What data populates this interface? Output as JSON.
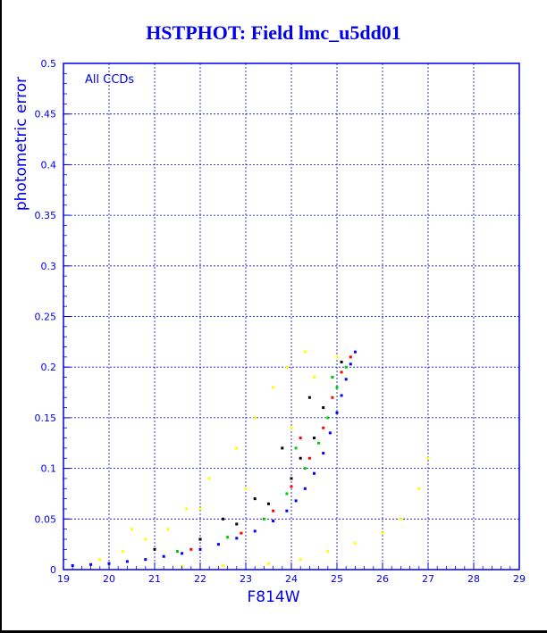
{
  "chart_data": {
    "type": "scatter",
    "title": "HSTPHOT: Field lmc_u5dd01",
    "xlabel": "F814W",
    "ylabel": "photometric error",
    "annotation": "All CCDs",
    "xlim": [
      19,
      29
    ],
    "ylim": [
      0,
      0.5
    ],
    "x_ticks": [
      "19",
      "20",
      "21",
      "22",
      "23",
      "24",
      "25",
      "26",
      "27",
      "28",
      "29"
    ],
    "y_ticks": [
      "0",
      "0.05",
      "0.1",
      "0.15",
      "0.2",
      "0.25",
      "0.3",
      "0.35",
      "0.4",
      "0.45",
      "0.5"
    ],
    "grid": true,
    "series": [
      {
        "color": "#0000ff",
        "points": [
          [
            19.2,
            0.004
          ],
          [
            19.6,
            0.005
          ],
          [
            20.0,
            0.006
          ],
          [
            20.4,
            0.008
          ],
          [
            20.8,
            0.01
          ],
          [
            21.2,
            0.013
          ],
          [
            21.6,
            0.016
          ],
          [
            22.0,
            0.02
          ],
          [
            22.4,
            0.025
          ],
          [
            22.8,
            0.031
          ],
          [
            23.2,
            0.038
          ],
          [
            23.6,
            0.048
          ],
          [
            23.9,
            0.058
          ],
          [
            24.1,
            0.068
          ],
          [
            24.3,
            0.08
          ],
          [
            24.5,
            0.095
          ],
          [
            24.7,
            0.115
          ],
          [
            24.85,
            0.135
          ],
          [
            25.0,
            0.155
          ],
          [
            25.1,
            0.172
          ],
          [
            25.2,
            0.188
          ],
          [
            25.3,
            0.203
          ],
          [
            25.4,
            0.215
          ]
        ]
      },
      {
        "color": "#000000",
        "points": [
          [
            21.0,
            0.02
          ],
          [
            22.0,
            0.03
          ],
          [
            22.8,
            0.045
          ],
          [
            23.5,
            0.065
          ],
          [
            24.0,
            0.09
          ],
          [
            24.2,
            0.11
          ],
          [
            24.5,
            0.13
          ],
          [
            24.7,
            0.16
          ],
          [
            24.9,
            0.19
          ],
          [
            25.1,
            0.205
          ],
          [
            23.8,
            0.12
          ],
          [
            24.4,
            0.17
          ],
          [
            22.5,
            0.05
          ],
          [
            23.2,
            0.07
          ]
        ]
      },
      {
        "color": "#00cc00",
        "points": [
          [
            21.5,
            0.018
          ],
          [
            22.6,
            0.032
          ],
          [
            23.4,
            0.05
          ],
          [
            23.9,
            0.075
          ],
          [
            24.3,
            0.1
          ],
          [
            24.6,
            0.125
          ],
          [
            24.8,
            0.15
          ],
          [
            25.0,
            0.18
          ],
          [
            25.2,
            0.2
          ],
          [
            24.1,
            0.12
          ],
          [
            24.9,
            0.19
          ]
        ]
      },
      {
        "color": "#ff0000",
        "points": [
          [
            21.8,
            0.02
          ],
          [
            22.9,
            0.036
          ],
          [
            23.6,
            0.058
          ],
          [
            24.0,
            0.082
          ],
          [
            24.4,
            0.11
          ],
          [
            24.7,
            0.14
          ],
          [
            24.9,
            0.17
          ],
          [
            25.1,
            0.195
          ],
          [
            25.3,
            0.21
          ],
          [
            24.2,
            0.13
          ]
        ]
      },
      {
        "color": "#ffff00",
        "points": [
          [
            19.8,
            0.01
          ],
          [
            20.3,
            0.018
          ],
          [
            20.8,
            0.03
          ],
          [
            21.3,
            0.04
          ],
          [
            21.7,
            0.06
          ],
          [
            22.2,
            0.09
          ],
          [
            22.8,
            0.12
          ],
          [
            23.2,
            0.15
          ],
          [
            23.6,
            0.18
          ],
          [
            23.9,
            0.2
          ],
          [
            24.3,
            0.215
          ],
          [
            21.6,
            0.003
          ],
          [
            22.5,
            0.004
          ],
          [
            23.5,
            0.006
          ],
          [
            24.2,
            0.01
          ],
          [
            24.8,
            0.018
          ],
          [
            25.4,
            0.026
          ],
          [
            26.0,
            0.036
          ],
          [
            26.4,
            0.05
          ],
          [
            26.8,
            0.08
          ],
          [
            27.0,
            0.11
          ],
          [
            22.0,
            0.06
          ],
          [
            23.0,
            0.08
          ],
          [
            24.0,
            0.14
          ],
          [
            24.5,
            0.19
          ],
          [
            25.0,
            0.21
          ],
          [
            20.5,
            0.04
          ]
        ]
      }
    ]
  }
}
